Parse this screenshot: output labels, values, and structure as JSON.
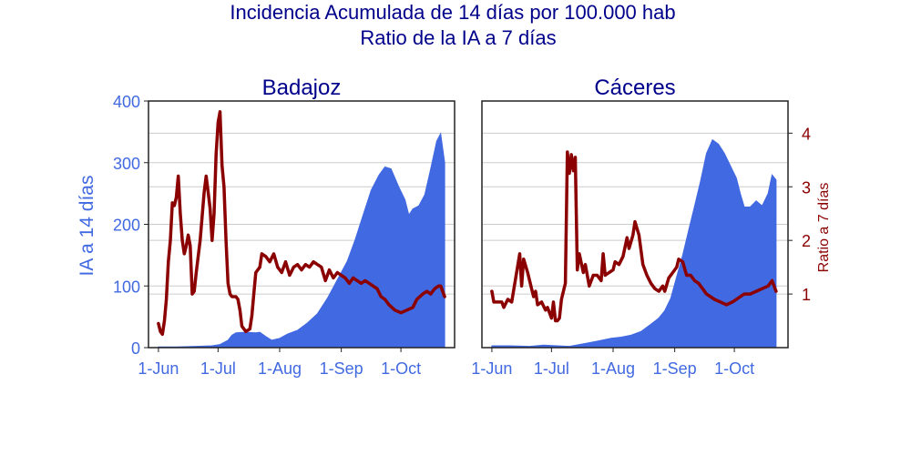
{
  "chart_data": {
    "type": "area",
    "title_lines": [
      "Incidencia Acumulada de 14 días por 100.000 hab",
      "Ratio de la IA a 7 días"
    ],
    "ylabel": "IA a 14 días",
    "y2label": "Ratio a 7 días",
    "ylim": [
      0,
      400
    ],
    "y2lim": [
      0,
      4.6
    ],
    "yticks": [
      0,
      100,
      200,
      300,
      400
    ],
    "y2ticks": [
      1,
      2,
      3,
      4
    ],
    "xlim": [
      "2020-05-27",
      "2020-10-28"
    ],
    "xticks": [
      {
        "date": "2020-06-01",
        "label": "1-Jun"
      },
      {
        "date": "2020-07-01",
        "label": "1-Jul"
      },
      {
        "date": "2020-08-01",
        "label": "1-Aug"
      },
      {
        "date": "2020-09-01",
        "label": "1-Sep"
      },
      {
        "date": "2020-10-01",
        "label": "1-Oct"
      }
    ],
    "colors": {
      "ia": "#4169e1",
      "ratio": "#8b0000",
      "grid": "#cccccc",
      "frame": "#222222",
      "title": "#00008b"
    },
    "panels": [
      {
        "name": "Badajoz",
        "ia": [
          [
            "2020-06-01",
            1
          ],
          [
            "2020-06-10",
            1
          ],
          [
            "2020-06-20",
            2
          ],
          [
            "2020-06-28",
            3
          ],
          [
            "2020-07-02",
            5
          ],
          [
            "2020-07-06",
            12
          ],
          [
            "2020-07-08",
            20
          ],
          [
            "2020-07-10",
            24
          ],
          [
            "2020-07-15",
            25
          ],
          [
            "2020-07-20",
            24
          ],
          [
            "2020-07-22",
            25
          ],
          [
            "2020-07-25",
            18
          ],
          [
            "2020-07-28",
            12
          ],
          [
            "2020-08-01",
            15
          ],
          [
            "2020-08-05",
            22
          ],
          [
            "2020-08-10",
            28
          ],
          [
            "2020-08-15",
            40
          ],
          [
            "2020-08-20",
            55
          ],
          [
            "2020-08-25",
            80
          ],
          [
            "2020-08-30",
            110
          ],
          [
            "2020-09-04",
            140
          ],
          [
            "2020-09-08",
            175
          ],
          [
            "2020-09-12",
            215
          ],
          [
            "2020-09-16",
            255
          ],
          [
            "2020-09-20",
            280
          ],
          [
            "2020-09-23",
            293
          ],
          [
            "2020-09-26",
            290
          ],
          [
            "2020-09-30",
            260
          ],
          [
            "2020-10-03",
            240
          ],
          [
            "2020-10-05",
            215
          ],
          [
            "2020-10-07",
            225
          ],
          [
            "2020-10-10",
            230
          ],
          [
            "2020-10-13",
            248
          ],
          [
            "2020-10-16",
            290
          ],
          [
            "2020-10-19",
            335
          ],
          [
            "2020-10-21",
            347
          ],
          [
            "2020-10-23",
            300
          ]
        ],
        "ratio": [
          [
            "2020-06-01",
            0.45
          ],
          [
            "2020-06-02",
            0.3
          ],
          [
            "2020-06-03",
            0.25
          ],
          [
            "2020-06-04",
            0.5
          ],
          [
            "2020-06-05",
            0.9
          ],
          [
            "2020-06-06",
            1.6
          ],
          [
            "2020-06-07",
            2.0
          ],
          [
            "2020-06-08",
            2.7
          ],
          [
            "2020-06-09",
            2.65
          ],
          [
            "2020-06-10",
            2.8
          ],
          [
            "2020-06-11",
            3.2
          ],
          [
            "2020-06-12",
            2.5
          ],
          [
            "2020-06-13",
            2.0
          ],
          [
            "2020-06-14",
            1.75
          ],
          [
            "2020-06-15",
            1.9
          ],
          [
            "2020-06-16",
            2.1
          ],
          [
            "2020-06-17",
            1.9
          ],
          [
            "2020-06-18",
            1.0
          ],
          [
            "2020-06-19",
            1.05
          ],
          [
            "2020-06-20",
            1.4
          ],
          [
            "2020-06-22",
            2.0
          ],
          [
            "2020-06-24",
            2.9
          ],
          [
            "2020-06-25",
            3.2
          ],
          [
            "2020-06-26",
            2.9
          ],
          [
            "2020-06-27",
            2.6
          ],
          [
            "2020-06-28",
            2.0
          ],
          [
            "2020-06-29",
            2.5
          ],
          [
            "2020-06-30",
            3.6
          ],
          [
            "2020-07-01",
            4.2
          ],
          [
            "2020-07-02",
            4.4
          ],
          [
            "2020-07-03",
            3.4
          ],
          [
            "2020-07-04",
            3.0
          ],
          [
            "2020-07-05",
            2.0
          ],
          [
            "2020-07-06",
            1.2
          ],
          [
            "2020-07-07",
            1.0
          ],
          [
            "2020-07-08",
            0.95
          ],
          [
            "2020-07-10",
            0.95
          ],
          [
            "2020-07-11",
            0.9
          ],
          [
            "2020-07-12",
            0.7
          ],
          [
            "2020-07-13",
            0.4
          ],
          [
            "2020-07-15",
            0.3
          ],
          [
            "2020-07-17",
            0.35
          ],
          [
            "2020-07-18",
            0.6
          ],
          [
            "2020-07-19",
            1.0
          ],
          [
            "2020-07-20",
            1.4
          ],
          [
            "2020-07-22",
            1.5
          ],
          [
            "2020-07-23",
            1.75
          ],
          [
            "2020-07-25",
            1.7
          ],
          [
            "2020-07-27",
            1.6
          ],
          [
            "2020-07-29",
            1.75
          ],
          [
            "2020-07-31",
            1.5
          ],
          [
            "2020-08-02",
            1.4
          ],
          [
            "2020-08-04",
            1.6
          ],
          [
            "2020-08-06",
            1.35
          ],
          [
            "2020-08-08",
            1.5
          ],
          [
            "2020-08-10",
            1.55
          ],
          [
            "2020-08-12",
            1.45
          ],
          [
            "2020-08-14",
            1.55
          ],
          [
            "2020-08-16",
            1.5
          ],
          [
            "2020-08-18",
            1.6
          ],
          [
            "2020-08-20",
            1.55
          ],
          [
            "2020-08-22",
            1.5
          ],
          [
            "2020-08-24",
            1.25
          ],
          [
            "2020-08-26",
            1.45
          ],
          [
            "2020-08-28",
            1.3
          ],
          [
            "2020-08-30",
            1.4
          ],
          [
            "2020-09-01",
            1.35
          ],
          [
            "2020-09-03",
            1.3
          ],
          [
            "2020-09-05",
            1.2
          ],
          [
            "2020-09-07",
            1.3
          ],
          [
            "2020-09-09",
            1.25
          ],
          [
            "2020-09-11",
            1.2
          ],
          [
            "2020-09-13",
            1.25
          ],
          [
            "2020-09-15",
            1.2
          ],
          [
            "2020-09-17",
            1.15
          ],
          [
            "2020-09-19",
            1.1
          ],
          [
            "2020-09-21",
            0.95
          ],
          [
            "2020-09-23",
            0.9
          ],
          [
            "2020-09-25",
            0.8
          ],
          [
            "2020-09-28",
            0.7
          ],
          [
            "2020-10-01",
            0.65
          ],
          [
            "2020-10-04",
            0.7
          ],
          [
            "2020-10-07",
            0.75
          ],
          [
            "2020-10-09",
            0.9
          ],
          [
            "2020-10-12",
            1.0
          ],
          [
            "2020-10-14",
            1.05
          ],
          [
            "2020-10-16",
            1.0
          ],
          [
            "2020-10-18",
            1.1
          ],
          [
            "2020-10-20",
            1.15
          ],
          [
            "2020-10-21",
            1.15
          ],
          [
            "2020-10-22",
            1.05
          ],
          [
            "2020-10-23",
            0.95
          ]
        ]
      },
      {
        "name": "Cáceres",
        "ia": [
          [
            "2020-06-01",
            3
          ],
          [
            "2020-06-10",
            3
          ],
          [
            "2020-06-20",
            2
          ],
          [
            "2020-06-27",
            4
          ],
          [
            "2020-07-04",
            3
          ],
          [
            "2020-07-10",
            2
          ],
          [
            "2020-07-15",
            5
          ],
          [
            "2020-07-20",
            8
          ],
          [
            "2020-07-25",
            11
          ],
          [
            "2020-07-31",
            15
          ],
          [
            "2020-08-05",
            17
          ],
          [
            "2020-08-10",
            20
          ],
          [
            "2020-08-15",
            26
          ],
          [
            "2020-08-20",
            38
          ],
          [
            "2020-08-24",
            48
          ],
          [
            "2020-08-27",
            60
          ],
          [
            "2020-08-30",
            80
          ],
          [
            "2020-09-02",
            115
          ],
          [
            "2020-09-05",
            150
          ],
          [
            "2020-09-08",
            190
          ],
          [
            "2020-09-11",
            230
          ],
          [
            "2020-09-14",
            270
          ],
          [
            "2020-09-17",
            315
          ],
          [
            "2020-09-20",
            337
          ],
          [
            "2020-09-23",
            330
          ],
          [
            "2020-09-26",
            315
          ],
          [
            "2020-09-29",
            295
          ],
          [
            "2020-10-02",
            275
          ],
          [
            "2020-10-04",
            250
          ],
          [
            "2020-10-06",
            228
          ],
          [
            "2020-10-09",
            228
          ],
          [
            "2020-10-12",
            238
          ],
          [
            "2020-10-15",
            230
          ],
          [
            "2020-10-18",
            250
          ],
          [
            "2020-10-20",
            280
          ],
          [
            "2020-10-22",
            272
          ]
        ],
        "ratio": [
          [
            "2020-06-01",
            1.05
          ],
          [
            "2020-06-02",
            0.85
          ],
          [
            "2020-06-04",
            0.85
          ],
          [
            "2020-06-06",
            0.85
          ],
          [
            "2020-06-07",
            0.75
          ],
          [
            "2020-06-09",
            0.9
          ],
          [
            "2020-06-11",
            0.85
          ],
          [
            "2020-06-13",
            1.3
          ],
          [
            "2020-06-15",
            1.75
          ],
          [
            "2020-06-16",
            1.15
          ],
          [
            "2020-06-17",
            1.65
          ],
          [
            "2020-06-19",
            1.4
          ],
          [
            "2020-06-21",
            1.1
          ],
          [
            "2020-06-22",
            0.95
          ],
          [
            "2020-06-23",
            1.05
          ],
          [
            "2020-06-24",
            0.8
          ],
          [
            "2020-06-26",
            0.85
          ],
          [
            "2020-06-28",
            0.7
          ],
          [
            "2020-06-29",
            0.75
          ],
          [
            "2020-07-01",
            0.55
          ],
          [
            "2020-07-02",
            0.85
          ],
          [
            "2020-07-03",
            0.5
          ],
          [
            "2020-07-04",
            0.5
          ],
          [
            "2020-07-05",
            0.55
          ],
          [
            "2020-07-06",
            0.9
          ],
          [
            "2020-07-08",
            1.2
          ],
          [
            "2020-07-09",
            3.65
          ],
          [
            "2020-07-10",
            3.25
          ],
          [
            "2020-07-11",
            3.6
          ],
          [
            "2020-07-12",
            3.3
          ],
          [
            "2020-07-13",
            3.55
          ],
          [
            "2020-07-14",
            1.45
          ],
          [
            "2020-07-15",
            1.75
          ],
          [
            "2020-07-17",
            1.4
          ],
          [
            "2020-07-18",
            1.55
          ],
          [
            "2020-07-20",
            1.15
          ],
          [
            "2020-07-22",
            1.35
          ],
          [
            "2020-07-24",
            1.35
          ],
          [
            "2020-07-26",
            1.25
          ],
          [
            "2020-07-27",
            1.75
          ],
          [
            "2020-07-28",
            1.35
          ],
          [
            "2020-07-30",
            1.4
          ],
          [
            "2020-08-01",
            1.45
          ],
          [
            "2020-08-02",
            1.6
          ],
          [
            "2020-08-04",
            1.55
          ],
          [
            "2020-08-06",
            1.7
          ],
          [
            "2020-08-08",
            2.05
          ],
          [
            "2020-08-09",
            1.85
          ],
          [
            "2020-08-11",
            2.1
          ],
          [
            "2020-08-12",
            2.35
          ],
          [
            "2020-08-14",
            2.1
          ],
          [
            "2020-08-16",
            1.55
          ],
          [
            "2020-08-18",
            1.35
          ],
          [
            "2020-08-20",
            1.2
          ],
          [
            "2020-08-22",
            1.1
          ],
          [
            "2020-08-24",
            1.05
          ],
          [
            "2020-08-26",
            1.15
          ],
          [
            "2020-08-27",
            1.05
          ],
          [
            "2020-08-29",
            1.3
          ],
          [
            "2020-08-31",
            1.4
          ],
          [
            "2020-09-02",
            1.5
          ],
          [
            "2020-09-03",
            1.65
          ],
          [
            "2020-09-05",
            1.6
          ],
          [
            "2020-09-07",
            1.35
          ],
          [
            "2020-09-09",
            1.35
          ],
          [
            "2020-09-11",
            1.25
          ],
          [
            "2020-09-13",
            1.2
          ],
          [
            "2020-09-15",
            1.1
          ],
          [
            "2020-09-17",
            1.0
          ],
          [
            "2020-09-19",
            0.95
          ],
          [
            "2020-09-21",
            0.9
          ],
          [
            "2020-09-24",
            0.85
          ],
          [
            "2020-09-27",
            0.8
          ],
          [
            "2020-09-30",
            0.85
          ],
          [
            "2020-10-02",
            0.9
          ],
          [
            "2020-10-04",
            0.95
          ],
          [
            "2020-10-06",
            1.0
          ],
          [
            "2020-10-09",
            1.0
          ],
          [
            "2020-10-12",
            1.05
          ],
          [
            "2020-10-15",
            1.1
          ],
          [
            "2020-10-18",
            1.15
          ],
          [
            "2020-10-20",
            1.25
          ],
          [
            "2020-10-21",
            1.15
          ],
          [
            "2020-10-22",
            1.05
          ]
        ]
      }
    ]
  }
}
